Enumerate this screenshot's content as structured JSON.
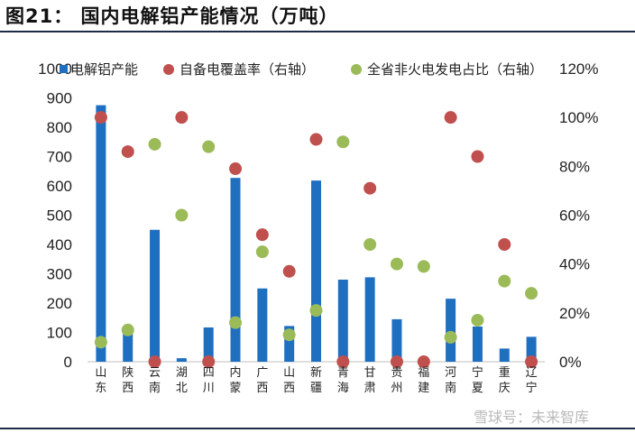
{
  "figure": {
    "title": "图21：   国内电解铝产能情况（万吨）"
  },
  "watermark": "雪球号：未来智库",
  "colors": {
    "bar": "#1f6fc1",
    "self_supply": "#c0504d",
    "non_thermal": "#9bbb59",
    "rule": "#1f2a44"
  },
  "chart_data": {
    "type": "bar",
    "categories": [
      "山东",
      "陕西",
      "云南",
      "湖北",
      "四川",
      "内蒙",
      "广西",
      "山西",
      "新疆",
      "青海",
      "甘肃",
      "贵州",
      "福建",
      "河南",
      "宁夏",
      "重庆",
      "辽宁"
    ],
    "y_left": {
      "lim": [
        0,
        1000
      ],
      "ticks": [
        "0",
        "100",
        "200",
        "300",
        "400",
        "500",
        "600",
        "700",
        "800",
        "900",
        "1000"
      ]
    },
    "y_right": {
      "lim": [
        0,
        120
      ],
      "ticks": [
        "0%",
        "20%",
        "40%",
        "60%",
        "80%",
        "100%",
        "120%"
      ]
    },
    "series": [
      {
        "name": "电解铝产能",
        "type": "bar",
        "axis": "left",
        "values": [
          875,
          100,
          450,
          12,
          117,
          627,
          250,
          122,
          618,
          280,
          288,
          145,
          0,
          215,
          120,
          45,
          85
        ]
      },
      {
        "name": "自备电覆盖率（右轴）",
        "type": "scatter",
        "axis": "right",
        "values": [
          100,
          86,
          0,
          100,
          0,
          79,
          52,
          37,
          91,
          0,
          71,
          0,
          0,
          100,
          84,
          48,
          0
        ]
      },
      {
        "name": "全省非火电发电占比（右轴）",
        "type": "scatter",
        "axis": "right",
        "values": [
          8,
          13,
          89,
          60,
          88,
          16,
          45,
          11,
          21,
          90,
          48,
          40,
          39,
          10,
          17,
          33,
          28
        ]
      }
    ],
    "legend": "top"
  }
}
